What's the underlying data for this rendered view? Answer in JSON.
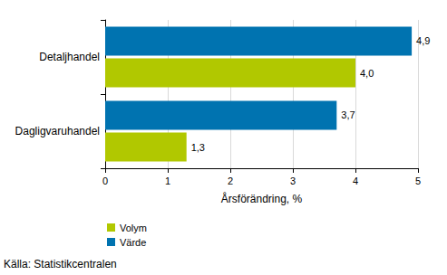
{
  "chart_data": {
    "type": "bar",
    "orientation": "horizontal",
    "categories": [
      "Detaljhandel",
      "Dagligvaruhandel"
    ],
    "series": [
      {
        "name": "Volym",
        "color": "#b1c800",
        "values": [
          4.0,
          1.3
        ],
        "value_labels": [
          "4,0",
          "1,3"
        ]
      },
      {
        "name": "Värde",
        "color": "#0073b0",
        "values": [
          4.9,
          3.7
        ],
        "value_labels": [
          "4,9",
          "3,7"
        ]
      }
    ],
    "x_label": "Årsförändring, %",
    "xlim": [
      0,
      5
    ],
    "xticks": [
      0,
      1,
      2,
      3,
      4,
      5
    ],
    "grid": true,
    "data_labels": true,
    "legend": "bottom-left",
    "annotations": [
      "Källa: Statistikcentralen"
    ]
  }
}
